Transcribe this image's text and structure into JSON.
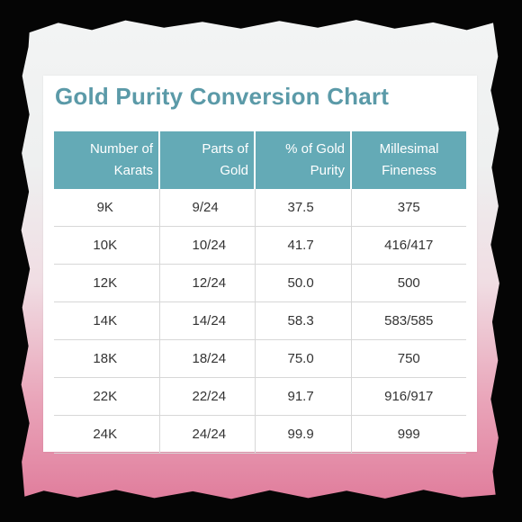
{
  "title": "Gold Purity Conversion Chart",
  "colors": {
    "title": "#5b9aa8",
    "header_bg": "#64aab6",
    "header_text": "#ffffff",
    "frame": "#050505",
    "background_top": "#f3f4f4",
    "background_bottom": "#e07d9c"
  },
  "chart_data": {
    "type": "table",
    "title": "Gold Purity Conversion Chart",
    "columns": [
      [
        "Number of",
        "Karats"
      ],
      [
        "Parts of",
        "Gold"
      ],
      [
        "% of Gold",
        "Purity"
      ],
      [
        "Millesimal",
        "Fineness"
      ]
    ],
    "rows": [
      [
        "9K",
        "9/24",
        "37.5",
        "375"
      ],
      [
        "10K",
        "10/24",
        "41.7",
        "416/417"
      ],
      [
        "12K",
        "12/24",
        "50.0",
        "500"
      ],
      [
        "14K",
        "14/24",
        "58.3",
        "583/585"
      ],
      [
        "18K",
        "18/24",
        "75.0",
        "750"
      ],
      [
        "22K",
        "22/24",
        "91.7",
        "916/917"
      ],
      [
        "24K",
        "24/24",
        "99.9",
        "999"
      ]
    ]
  }
}
